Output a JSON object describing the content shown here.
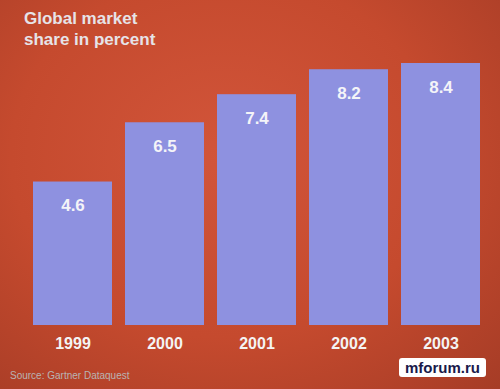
{
  "chart_data": {
    "type": "bar",
    "title": "Global market share in percent",
    "caption": "Source: Gartner Dataquest",
    "annotations": [
      "mforum.ru"
    ],
    "categories": [
      "1999",
      "2000",
      "2001",
      "2002",
      "2003"
    ],
    "values": [
      4.6,
      6.5,
      7.4,
      8.2,
      8.4
    ],
    "color": "#8e91e0",
    "ylim": [
      0,
      8.4
    ],
    "data_labels": true,
    "tick_labels": "x",
    "grid": false
  }
}
